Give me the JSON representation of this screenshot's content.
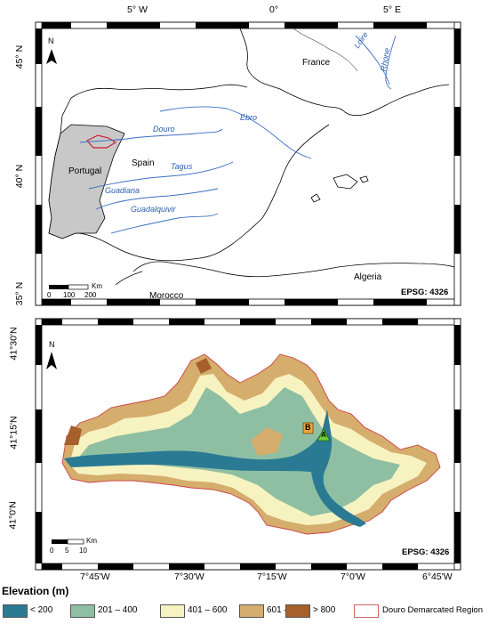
{
  "top_map": {
    "lon_labels": [
      "5° W",
      "0°",
      "5° E"
    ],
    "lat_labels": [
      "45° N",
      "40° N",
      "35° N"
    ],
    "countries": [
      "France",
      "Spain",
      "Portugal",
      "Algeria",
      "Morocco"
    ],
    "rivers": [
      "Douro",
      "Ebro",
      "Tagus",
      "Guadiana",
      "Guadalquivir",
      "Loire",
      "Rhone"
    ],
    "north_label": "N",
    "scale": {
      "unit": "Km",
      "ticks": [
        "0",
        "100",
        "200"
      ]
    },
    "epsg": "EPSG: 4326",
    "colors": {
      "portugal_fill": "#c8c8c8",
      "river": "#3a6fc4",
      "region_outline": "#cc2233"
    }
  },
  "bottom_map": {
    "lon_labels": [
      "7°45'W",
      "7°30'W",
      "7°15'W",
      "7°0'W",
      "6°45'W"
    ],
    "lat_labels": [
      "41°30'N",
      "41°15'N",
      "41°0'N"
    ],
    "north_label": "N",
    "scale": {
      "unit": "Km",
      "ticks": [
        "0",
        "5",
        "10"
      ]
    },
    "epsg": "EPSG: 4326",
    "markers": [
      {
        "label": "B",
        "shape": "square",
        "color": "#f2a33a"
      },
      {
        "label": "A",
        "shape": "triangle",
        "color": "#6ecb3c"
      }
    ]
  },
  "legend": {
    "title": "Elevation (m)",
    "items": [
      {
        "label": "< 200",
        "color": "#2b7a93"
      },
      {
        "label": "201 – 400",
        "color": "#8fbfa3"
      },
      {
        "label": "401 – 600",
        "color": "#f7f3c0"
      },
      {
        "label": "601 – 800",
        "color": "#d5ad6d"
      },
      {
        "label": "> 800",
        "color": "#a8602a"
      }
    ],
    "region": {
      "label": "Douro Demarcated Region",
      "color": "#cc6666"
    }
  }
}
